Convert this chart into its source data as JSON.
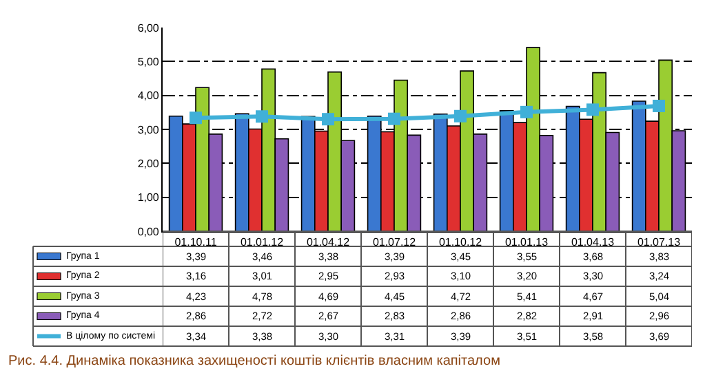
{
  "chart_data": {
    "type": "bar",
    "categories": [
      "01.10.11",
      "01.01.12",
      "01.04.12",
      "01.07.12",
      "01.10.12",
      "01.01.13",
      "01.04.13",
      "01.07.13"
    ],
    "series": [
      {
        "name": "Група 1",
        "color": "#3a78d0",
        "values": [
          3.39,
          3.46,
          3.38,
          3.39,
          3.45,
          3.55,
          3.68,
          3.83
        ],
        "value_labels": [
          "3,39",
          "3,46",
          "3,38",
          "3,39",
          "3,45",
          "3,55",
          "3,68",
          "3,83"
        ]
      },
      {
        "name": "Група 2",
        "color": "#e03030",
        "values": [
          3.16,
          3.01,
          2.95,
          2.93,
          3.1,
          3.2,
          3.3,
          3.24
        ],
        "value_labels": [
          "3,16",
          "3,01",
          "2,95",
          "2,93",
          "3,10",
          "3,20",
          "3,30",
          "3,24"
        ]
      },
      {
        "name": "Група 3",
        "color": "#9acd32",
        "values": [
          4.23,
          4.78,
          4.69,
          4.45,
          4.72,
          5.41,
          4.67,
          5.04
        ],
        "value_labels": [
          "4,23",
          "4,78",
          "4,69",
          "4,45",
          "4,72",
          "5,41",
          "4,67",
          "5,04"
        ]
      },
      {
        "name": "Група 4",
        "color": "#8a5cb8",
        "values": [
          2.86,
          2.72,
          2.67,
          2.83,
          2.86,
          2.82,
          2.91,
          2.96
        ],
        "value_labels": [
          "2,86",
          "2,72",
          "2,67",
          "2,83",
          "2,86",
          "2,82",
          "2,91",
          "2,96"
        ]
      },
      {
        "name": "В цілому по системі",
        "color": "#40b0d8",
        "type": "line",
        "marker": "square",
        "line_style": "solid",
        "values": [
          3.34,
          3.38,
          3.3,
          3.31,
          3.39,
          3.51,
          3.58,
          3.69
        ],
        "value_labels": [
          "3,34",
          "3,38",
          "3,30",
          "3,31",
          "3,39",
          "3,51",
          "3,58",
          "3,69"
        ]
      }
    ],
    "ylim": [
      0,
      6
    ],
    "yticks": [
      {
        "value": 0,
        "label": "0,00"
      },
      {
        "value": 1,
        "label": "1,00"
      },
      {
        "value": 2,
        "label": "2,00"
      },
      {
        "value": 3,
        "label": "3,00"
      },
      {
        "value": 4,
        "label": "4,00"
      },
      {
        "value": 5,
        "label": "5,00"
      },
      {
        "value": 6,
        "label": "6,00"
      }
    ],
    "grid": "y",
    "legend": "bottom",
    "annotations": [
      "Рис. 4.4. Динаміка показника захищеності коштів клієнтів власним капіталом"
    ]
  }
}
